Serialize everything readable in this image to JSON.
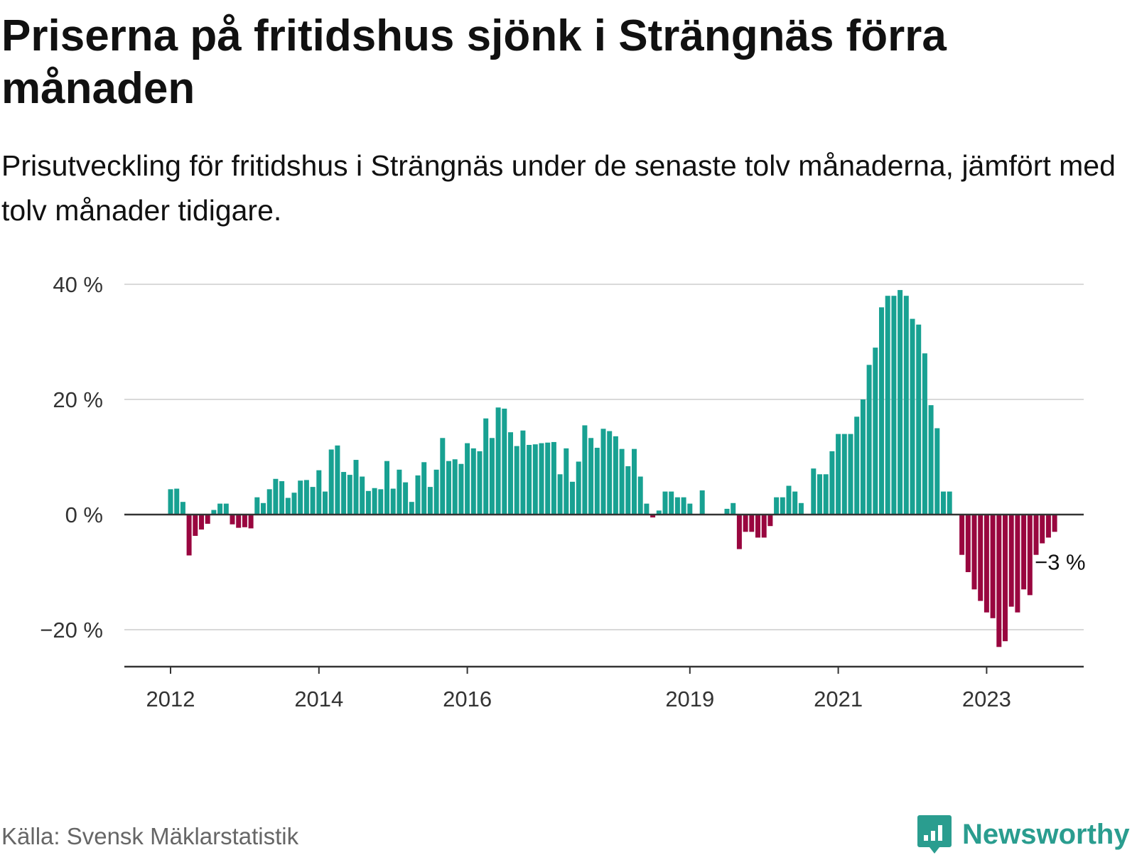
{
  "header": {
    "title": "Priserna på fritidshus sjönk i Strängnäs förra månaden",
    "subtitle": "Prisutveckling för fritidshus i Strängnäs under de senaste tolv månaderna, jämfört med tolv månader tidigare."
  },
  "footer": {
    "source": "Källa: Svensk Mäklarstatistik",
    "brand": "Newsworthy"
  },
  "colors": {
    "positive": "#18a192",
    "negative": "#99063f",
    "grid": "#d9d9d9",
    "axis": "#333333",
    "brand": "#2a9d8f"
  },
  "chart_data": {
    "type": "bar",
    "title": "",
    "xlabel": "",
    "ylabel": "",
    "ylim": [
      -26,
      40
    ],
    "yticks": [
      40,
      20,
      0,
      -20
    ],
    "ytick_labels": [
      "40 %",
      "20 %",
      "0 %",
      "−20 %"
    ],
    "x_ticks": [
      {
        "label": "2012",
        "index": 0
      },
      {
        "label": "2014",
        "index": 24
      },
      {
        "label": "2016",
        "index": 48
      },
      {
        "label": "2019",
        "index": 84
      },
      {
        "label": "2021",
        "index": 108
      },
      {
        "label": "2023",
        "index": 132
      }
    ],
    "annotation": {
      "text": "−3 %",
      "index": 143
    },
    "grid": true,
    "legend": "none",
    "series": [
      {
        "start": "2012-01",
        "values": [
          4.4,
          4.5,
          2.2,
          -7.1,
          -3.7,
          -2.6,
          -1.6,
          0.8,
          1.9,
          1.9,
          -1.7,
          -2.3,
          -2.2,
          -2.4,
          3.0,
          2.0,
          4.4,
          6.2,
          5.8,
          2.9,
          3.8,
          5.9,
          6.0,
          4.8,
          7.7,
          4.0,
          11.3,
          12.0,
          7.4,
          6.9,
          9.5,
          6.6,
          4.1,
          4.6,
          4.4,
          9.3,
          4.5,
          7.8,
          5.6,
          2.2,
          6.8,
          9.1,
          4.8,
          7.8,
          13.3,
          9.3,
          9.6,
          8.8,
          12.4,
          11.5,
          11.0,
          16.7,
          13.3,
          18.6,
          18.4,
          14.3,
          11.9,
          14.6,
          12.1,
          12.2,
          12.4,
          12.5,
          12.6,
          7.0,
          11.5,
          5.7,
          9.2,
          15.5,
          13.3,
          11.6,
          14.9,
          14.5,
          13.6,
          11.4,
          8.4,
          11.4,
          6.6,
          1.9,
          -0.5,
          0.7,
          4.0,
          4.0,
          3.0,
          3.0,
          1.9,
          0.0,
          4.2,
          0.0,
          0.0,
          0.0,
          1.0,
          2.0,
          -6.0,
          -3.0,
          -3.0,
          -4.0,
          -4.0,
          -2.0,
          3.0,
          3.0,
          5.0,
          4.0,
          2.0,
          0.0,
          8.0,
          7.0,
          7.0,
          11.0,
          14.0,
          14.0,
          14.0,
          17.0,
          20.0,
          26.0,
          29.0,
          36.0,
          38.0,
          38.0,
          39.0,
          38.0,
          34.0,
          33.0,
          28.0,
          19.0,
          15.0,
          4.0,
          4.0,
          0.0,
          -7.0,
          -10.0,
          -13.0,
          -15.0,
          -17.0,
          -18.0,
          -23.0,
          -22.0,
          -16.0,
          -17.0,
          -13.0,
          -14.0,
          -7.0,
          -5.0,
          -4.0,
          -3.0
        ]
      }
    ]
  }
}
